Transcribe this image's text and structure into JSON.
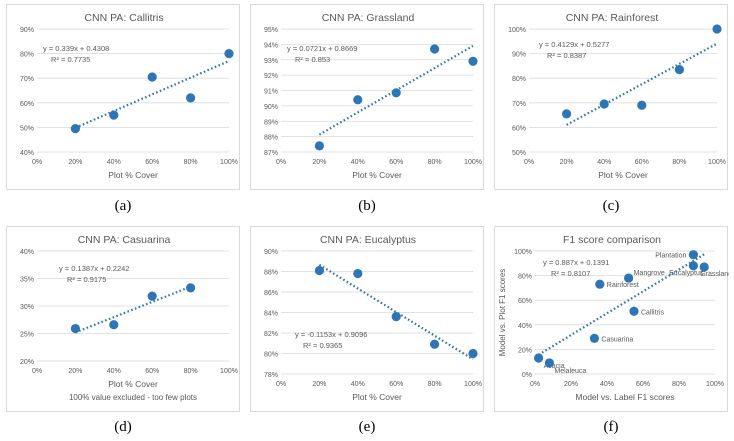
{
  "colors": {
    "marker": "#2e75b6",
    "trend": "#2e75b6",
    "axis_text": "#595959",
    "title_text": "#595959",
    "grid": "#d9d9d9"
  },
  "chart_data": [
    {
      "type": "scatter",
      "title": "CNN PA: Callitris",
      "xlabel": "Plot % Cover",
      "xlim": [
        0,
        100
      ],
      "xticks": [
        0,
        20,
        40,
        60,
        80,
        100
      ],
      "xtick_labels": [
        "0%",
        "20%",
        "40%",
        "60%",
        "80%",
        "100%"
      ],
      "ylim": [
        40,
        90
      ],
      "yticks": [
        40,
        50,
        60,
        70,
        80,
        90
      ],
      "ytick_labels": [
        "40%",
        "50%",
        "60%",
        "70%",
        "80%",
        "90%"
      ],
      "points": [
        {
          "x": 20,
          "y": 49.5
        },
        {
          "x": 40,
          "y": 55
        },
        {
          "x": 60,
          "y": 70.5
        },
        {
          "x": 80,
          "y": 62
        },
        {
          "x": 100,
          "y": 80
        }
      ],
      "trendline": {
        "slope": 33.9,
        "intercept": 43.08,
        "x_range": [
          20,
          100
        ]
      },
      "equation": "y = 0.339x + 0.4308",
      "r2": "R² = 0.7735",
      "note": "",
      "caption": "(a)"
    },
    {
      "type": "scatter",
      "title": "CNN PA: Grassland",
      "xlabel": "Plot % Cover",
      "xlim": [
        0,
        100
      ],
      "xticks": [
        0,
        20,
        40,
        60,
        80,
        100
      ],
      "xtick_labels": [
        "0%",
        "20%",
        "40%",
        "60%",
        "80%",
        "100%"
      ],
      "ylim": [
        87,
        95
      ],
      "yticks": [
        87,
        88,
        89,
        90,
        91,
        92,
        93,
        94,
        95
      ],
      "ytick_labels": [
        "87%",
        "88%",
        "89%",
        "90%",
        "91%",
        "92%",
        "93%",
        "94%",
        "95%"
      ],
      "points": [
        {
          "x": 20,
          "y": 87.4
        },
        {
          "x": 40,
          "y": 90.4
        },
        {
          "x": 60,
          "y": 90.85
        },
        {
          "x": 80,
          "y": 93.7
        },
        {
          "x": 100,
          "y": 92.9
        }
      ],
      "trendline": {
        "slope": 7.21,
        "intercept": 86.69,
        "x_range": [
          20,
          100
        ]
      },
      "equation": "y = 0.0721x + 0.8669",
      "r2": "R² = 0.853",
      "note": "",
      "caption": "(b)"
    },
    {
      "type": "scatter",
      "title": "CNN PA: Rainforest",
      "xlabel": "Plot % Cover",
      "xlim": [
        0,
        100
      ],
      "xticks": [
        0,
        20,
        40,
        60,
        80,
        100
      ],
      "xtick_labels": [
        "0%",
        "20%",
        "40%",
        "60%",
        "80%",
        "100%"
      ],
      "ylim": [
        50,
        100
      ],
      "yticks": [
        50,
        60,
        70,
        80,
        90,
        100
      ],
      "ytick_labels": [
        "50%",
        "60%",
        "70%",
        "80%",
        "90%",
        "100%"
      ],
      "points": [
        {
          "x": 20,
          "y": 65.5
        },
        {
          "x": 40,
          "y": 69.5
        },
        {
          "x": 60,
          "y": 69
        },
        {
          "x": 80,
          "y": 83.5
        },
        {
          "x": 100,
          "y": 100
        }
      ],
      "trendline": {
        "slope": 41.29,
        "intercept": 52.77,
        "x_range": [
          20,
          100
        ]
      },
      "equation": "y = 0.4129x + 0.5277",
      "r2": "R² = 0.8387",
      "note": "",
      "caption": "(c)"
    },
    {
      "type": "scatter",
      "title": "CNN PA: Casuarina",
      "xlabel": "Plot % Cover",
      "xlim": [
        0,
        100
      ],
      "xticks": [
        0,
        20,
        40,
        60,
        80,
        100
      ],
      "xtick_labels": [
        "0%",
        "20%",
        "40%",
        "60%",
        "80%",
        "100%"
      ],
      "ylim": [
        20,
        40
      ],
      "yticks": [
        20,
        25,
        30,
        35,
        40
      ],
      "ytick_labels": [
        "20%",
        "25%",
        "30%",
        "35%",
        "40%"
      ],
      "points": [
        {
          "x": 20,
          "y": 25.9
        },
        {
          "x": 40,
          "y": 26.6
        },
        {
          "x": 60,
          "y": 31.8
        },
        {
          "x": 80,
          "y": 33.3
        }
      ],
      "trendline": {
        "slope": 13.87,
        "intercept": 22.42,
        "x_range": [
          20,
          80
        ]
      },
      "equation": "y = 0.1387x + 0.2242",
      "r2": "R² = 0.9175",
      "note": "100% value excluded - too few plots",
      "caption": "(d)"
    },
    {
      "type": "scatter",
      "title": "CNN PA: Eucalyptus",
      "xlabel": "Plot % Cover",
      "xlim": [
        0,
        100
      ],
      "xticks": [
        0,
        20,
        40,
        60,
        80,
        100
      ],
      "xtick_labels": [
        "0%",
        "20%",
        "40%",
        "60%",
        "80%",
        "100%"
      ],
      "ylim": [
        78,
        90
      ],
      "yticks": [
        78,
        80,
        82,
        84,
        86,
        88,
        90
      ],
      "ytick_labels": [
        "78%",
        "80%",
        "82%",
        "84%",
        "86%",
        "88%",
        "90%"
      ],
      "points": [
        {
          "x": 20,
          "y": 88.1
        },
        {
          "x": 40,
          "y": 87.8
        },
        {
          "x": 60,
          "y": 83.6
        },
        {
          "x": 80,
          "y": 80.9
        },
        {
          "x": 100,
          "y": 80
        }
      ],
      "trendline": {
        "slope": -11.53,
        "intercept": 90.96,
        "x_range": [
          20,
          100
        ]
      },
      "equation": "y = -0.1153x + 0.9096",
      "r2": "R² = 0.9365",
      "note": "",
      "caption": "(e)"
    },
    {
      "type": "scatter",
      "title": "F1 score comparison",
      "xlabel": "Model vs. Label F1 scores",
      "ylabel": "Model vs. Plot F1 scores",
      "xlim": [
        0,
        100
      ],
      "xticks": [
        0,
        20,
        40,
        60,
        80,
        100
      ],
      "xtick_labels": [
        "0%",
        "20%",
        "40%",
        "60%",
        "80%",
        "100%"
      ],
      "ylim": [
        0,
        100
      ],
      "yticks": [
        0,
        20,
        40,
        60,
        80,
        100
      ],
      "ytick_labels": [
        "0%",
        "20%",
        "40%",
        "60%",
        "80%",
        "100%"
      ],
      "points": [
        {
          "x": 2,
          "y": 13,
          "label": "Acacia",
          "lpos": "below-right"
        },
        {
          "x": 8,
          "y": 9,
          "label": "Melaleuca",
          "lpos": "below-right"
        },
        {
          "x": 33,
          "y": 29,
          "label": "Casuarina",
          "lpos": "right"
        },
        {
          "x": 55,
          "y": 51,
          "label": "Callitris",
          "lpos": "right"
        },
        {
          "x": 36,
          "y": 73,
          "label": "Rainforest",
          "lpos": "right"
        },
        {
          "x": 52,
          "y": 78,
          "label": "Mangrove",
          "lpos": "above-right"
        },
        {
          "x": 88,
          "y": 88,
          "label": "Eucalyptus",
          "lpos": "below-left"
        },
        {
          "x": 94,
          "y": 87,
          "label": "Grassland",
          "lpos": "below"
        },
        {
          "x": 88,
          "y": 97,
          "label": "Plantation",
          "lpos": "left"
        }
      ],
      "trendline": {
        "slope": 88.7,
        "intercept": 13.91,
        "x_range": [
          2,
          94
        ]
      },
      "equation": "y = 0.887x + 0.1391",
      "r2": "R² = 0.8107",
      "note": "",
      "caption": "(f)"
    }
  ]
}
